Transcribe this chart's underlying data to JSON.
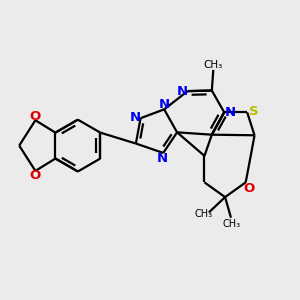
{
  "background_color": "#ebebeb",
  "bond_color": "#000000",
  "N_color": "#0000ee",
  "O_color": "#dd0000",
  "S_color": "#bbbb00",
  "line_width": 1.6,
  "figsize": [
    3.0,
    3.0
  ],
  "dpi": 100,
  "methyl_label": "CH₃",
  "S_label": "S",
  "O_label": "O",
  "N_label": "N"
}
